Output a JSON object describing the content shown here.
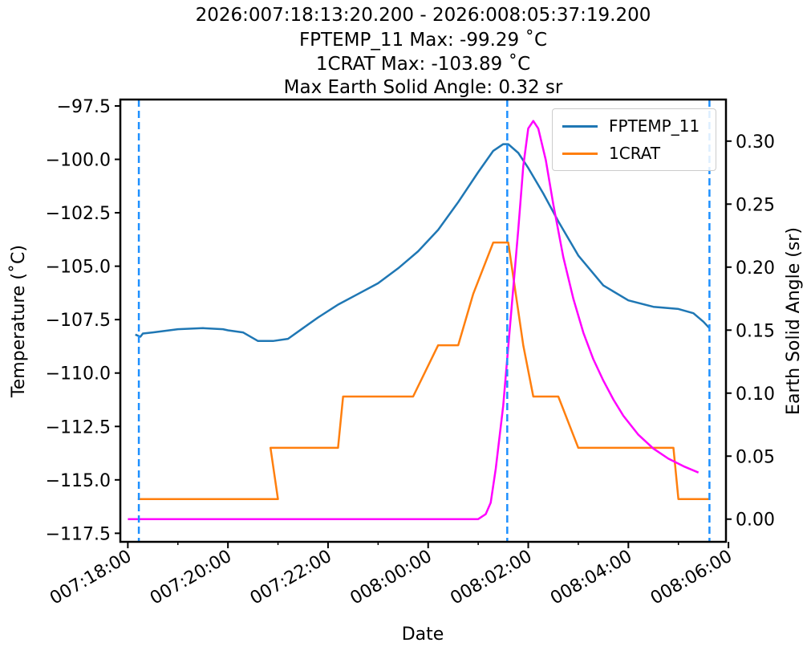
{
  "header": {
    "title_lines": [
      "2026:007:18:13:20.200 - 2026:008:05:37:19.200",
      "FPTEMP_11 Max: -99.29 ˚C",
      "1CRAT Max: -103.89 ˚C",
      "Max Earth Solid Angle: 0.32 sr"
    ]
  },
  "chart_data": {
    "type": "line",
    "xlabel": "Date",
    "ylabel_left": "Temperature (˚C)",
    "ylabel_right": "Earth Solid Angle (sr)",
    "x_unit": "hours relative to 2026:007:18:00:00",
    "x_ticks": [
      {
        "x": 0,
        "label": "007:18:00"
      },
      {
        "x": 2,
        "label": "007:20:00"
      },
      {
        "x": 4,
        "label": "007:22:00"
      },
      {
        "x": 6,
        "label": "008:00:00"
      },
      {
        "x": 8,
        "label": "008:02:00"
      },
      {
        "x": 10,
        "label": "008:04:00"
      },
      {
        "x": 12,
        "label": "008:06:00"
      }
    ],
    "xlim": [
      -0.15,
      11.95
    ],
    "ylim_left": [
      -117.9,
      -97.2
    ],
    "ylim_right": [
      -0.018,
      0.333
    ],
    "left_ticks": [
      -97.5,
      -100.0,
      -102.5,
      -105.0,
      -107.5,
      -110.0,
      -112.5,
      -115.0,
      -117.5
    ],
    "right_ticks": [
      0.0,
      0.05,
      0.1,
      0.15,
      0.2,
      0.25,
      0.3
    ],
    "vlines": [
      0.22,
      7.58,
      11.62
    ],
    "vline_color": "#1e90ff",
    "series": [
      {
        "name": "FPTEMP_11",
        "axis": "left",
        "color": "#1f77b4",
        "x": [
          0.15,
          0.25,
          0.3,
          0.5,
          1.0,
          1.5,
          1.9,
          2.0,
          2.3,
          2.6,
          2.9,
          3.2,
          3.5,
          3.8,
          4.2,
          4.6,
          5.0,
          5.4,
          5.8,
          6.2,
          6.6,
          7.0,
          7.3,
          7.5,
          7.6,
          7.8,
          8.0,
          8.3,
          8.6,
          9.0,
          9.5,
          10.0,
          10.5,
          11.0,
          11.3,
          11.5,
          11.62
        ],
        "y": [
          -108.2,
          -108.3,
          -108.15,
          -108.1,
          -107.95,
          -107.9,
          -107.95,
          -108.0,
          -108.1,
          -108.5,
          -108.5,
          -108.4,
          -107.9,
          -107.4,
          -106.8,
          -106.3,
          -105.8,
          -105.1,
          -104.3,
          -103.3,
          -102.0,
          -100.6,
          -99.6,
          -99.29,
          -99.29,
          -99.7,
          -100.4,
          -101.6,
          -102.9,
          -104.5,
          -105.9,
          -106.6,
          -106.9,
          -107.0,
          -107.2,
          -107.6,
          -107.9
        ]
      },
      {
        "name": "1CRAT",
        "axis": "left",
        "color": "#ff7f0e",
        "x": [
          0.2,
          0.8,
          1.0,
          2.0,
          3.0,
          2.85,
          3.0,
          3.4,
          4.2,
          4.3,
          5.0,
          5.7,
          6.2,
          6.6,
          6.9,
          7.3,
          7.6,
          7.9,
          8.1,
          8.6,
          9.0,
          9.5,
          10.2,
          10.9,
          11.0,
          11.62
        ],
        "y": [
          -115.9,
          -115.9,
          -115.9,
          -115.9,
          -115.9,
          -113.5,
          -113.5,
          -113.5,
          -113.5,
          -111.1,
          -111.1,
          -111.1,
          -108.7,
          -108.7,
          -106.3,
          -103.89,
          -103.89,
          -108.7,
          -111.1,
          -111.1,
          -113.5,
          -113.5,
          -113.5,
          -113.5,
          -115.9,
          -115.9
        ]
      },
      {
        "name": "",
        "axis": "right",
        "color": "#ff00ff",
        "x": [
          0.0,
          1.0,
          2.0,
          3.0,
          4.0,
          5.0,
          6.0,
          6.8,
          7.0,
          7.15,
          7.25,
          7.35,
          7.5,
          7.65,
          7.8,
          7.9,
          8.0,
          8.1,
          8.2,
          8.35,
          8.5,
          8.7,
          8.9,
          9.1,
          9.3,
          9.5,
          9.7,
          9.9,
          10.2,
          10.5,
          10.8,
          11.1,
          11.4
        ],
        "y": [
          0.0,
          0.0,
          0.0,
          0.0,
          0.0,
          0.0,
          0.0,
          0.0,
          0.0,
          0.004,
          0.013,
          0.04,
          0.09,
          0.16,
          0.23,
          0.28,
          0.31,
          0.316,
          0.31,
          0.285,
          0.25,
          0.208,
          0.175,
          0.148,
          0.127,
          0.11,
          0.095,
          0.082,
          0.067,
          0.056,
          0.048,
          0.042,
          0.037
        ]
      }
    ],
    "legend": {
      "placement": "upper right",
      "entries": [
        "FPTEMP_11",
        "1CRAT"
      ]
    }
  }
}
